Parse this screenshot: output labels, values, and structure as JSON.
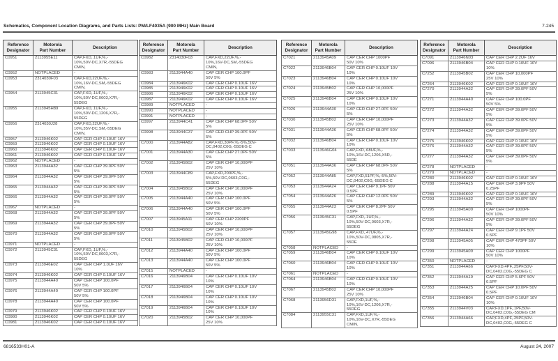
{
  "header": {
    "title": "Schematics, Component Location Diagrams, and Parts Lists: PM/LF4035A (900 MHz) Main Board",
    "page": "7-245"
  },
  "footer": {
    "doc_number": "6816533H01-A",
    "date": "August 24, 2007"
  },
  "columns": {
    "ref": "Reference\nDesignator",
    "part": "Motorola\nPart Number",
    "desc": "Description"
  },
  "tables": [
    {
      "rows": [
        {
          "ref": "C0951",
          "part": "2113955E11",
          "desc": "CAP,FXD,.1UF,%,-\n10%,50V-DC,X7R,-55DEG\nCMIN,"
        },
        {
          "ref": "C0952",
          "part": "NOTPLACED",
          "desc": "-"
        },
        {
          "ref": "C0953",
          "part": "2314030F03",
          "desc": "CAP,FXD,22UF,%,-\n10%,16V-DC,SM,-55DEG\nCMIN,"
        },
        {
          "ref": "C0954",
          "part": "2113945C31",
          "desc": "CAP,FXD,.1UF,%,-\n10%,50V-DC,0603,X7R,-\n55DEG"
        },
        {
          "ref": "C0955",
          "part": "2113945H89",
          "desc": "CAP,FXD,.1UF,%,-\n10%,50V-DC,1206,X7R,-\n55DEG"
        },
        {
          "ref": "C0956",
          "part": "2314030J28",
          "desc": "CAP,FXD,22UF,%,-\n10%,35V-DC,SM,-55DEG\nCMIN,"
        },
        {
          "ref": "C0957",
          "part": "2113946K02",
          "desc": "CAP CER CHP 0.10UF 16V"
        },
        {
          "ref": "C0959",
          "part": "2113946K02",
          "desc": "CAP CER CHP 0.10UF 16V"
        },
        {
          "ref": "C0960",
          "part": "2113946K02",
          "desc": "CAP CER CHP 0.10UF 16V"
        },
        {
          "ref": "C0961",
          "part": "2113946K02",
          "desc": "CAP CER CHP 0.10UF 16V"
        },
        {
          "ref": "C0962",
          "part": "NOTPLACED",
          "desc": "-"
        },
        {
          "ref": "C0963",
          "part": "2113944A32",
          "desc": "CAP CER CHP 39.0PF 50V\n5%"
        },
        {
          "ref": "C0964",
          "part": "2113944A32",
          "desc": "CAP CER CHP 39.0PF 50V\n5%"
        },
        {
          "ref": "C0965",
          "part": "2113944A32",
          "desc": "CAP CER CHP 39.0PF 50V\n5%"
        },
        {
          "ref": "C0966",
          "part": "2113944A32",
          "desc": "CAP CER CHP 39.0PF 50V\n5%"
        },
        {
          "ref": "C0967",
          "part": "NOTPLACED",
          "desc": "-"
        },
        {
          "ref": "C0968",
          "part": "2113944A32",
          "desc": "CAP CER CHP 39.0PF 50V\n5%"
        },
        {
          "ref": "C0969",
          "part": "2113944A32",
          "desc": "CAP CER CHP 39.0PF 50V\n5%"
        },
        {
          "ref": "C0970",
          "part": "2113944A32",
          "desc": "CAP CER CHP 39.0PF 50V\n5%"
        },
        {
          "ref": "C0971",
          "part": "NOTPLACED",
          "desc": "-"
        },
        {
          "ref": "C0972",
          "part": "2113945C31",
          "desc": "CAP,FXD,.1UF,%,-\n10%,50V-DC,0603,X7R,-\n55DEG"
        },
        {
          "ref": "C0973",
          "part": "2113946E02",
          "desc": "CAP CER CHP 1.0UF 16V\n10%"
        },
        {
          "ref": "C0974",
          "part": "2113946K02",
          "desc": "CAP CER CHP 0.10UF 16V"
        },
        {
          "ref": "C0975",
          "part": "2113944A40",
          "desc": "CAP CER CHP 100.0PF\n50V 5%"
        },
        {
          "ref": "C0976",
          "part": "2113944A40",
          "desc": "CAP CER CHP 100.0PF\n50V 5%"
        },
        {
          "ref": "C0978",
          "part": "2113944A40",
          "desc": "CAP CER CHP 100.0PF\n50V 5%"
        },
        {
          "ref": "C0979",
          "part": "2113946K02",
          "desc": "CAP CER CHP 0.10UF 16V"
        },
        {
          "ref": "C0980",
          "part": "2113946K02",
          "desc": "CAP CER CHP 0.10UF 16V"
        },
        {
          "ref": "C0981",
          "part": "2113946K02",
          "desc": "CAP CER CHP 0.10UF 16V"
        }
      ]
    },
    {
      "rows": [
        {
          "ref": "C0982",
          "part": "2314030F03",
          "desc": "CAP,FXD,22UF,%,-\n10%,16V-DC,SM,-55DEG\nCMIN,"
        },
        {
          "ref": "C0983",
          "part": "2113944A40",
          "desc": "CAP CER CHP 100.0PF\n50V 5%"
        },
        {
          "ref": "C0984",
          "part": "2113946K02",
          "desc": "CAP CER CHP 0.10UF 16V"
        },
        {
          "ref": "C0985",
          "part": "2113946K02",
          "desc": "CAP CER CHP 0.10UF 16V"
        },
        {
          "ref": "C0986",
          "part": "2113946K02",
          "desc": "CAP CER CHP 0.10UF 16V"
        },
        {
          "ref": "C0987",
          "part": "2113946K02",
          "desc": "CAP CER CHP 0.10UF 16V"
        },
        {
          "ref": "C0989",
          "part": "NOTPLACED",
          "desc": "-"
        },
        {
          "ref": "C0990",
          "part": "NOTPLACED",
          "desc": "-"
        },
        {
          "ref": "C0991",
          "part": "NOTPLACED",
          "desc": "-"
        },
        {
          "ref": "C0997",
          "part": "2113944C41",
          "desc": "CAP CER CHP 68.0PF 50V\n5%"
        },
        {
          "ref": "C0998",
          "part": "2113944C37",
          "desc": "CAP CER CHP 39.0PF 50V\n5%"
        },
        {
          "ref": "C7000",
          "part": "2113944A82",
          "desc": "CAP,FXD,30PF,%,-5%,50V-\nDC,0402,C0G,-55DEG C"
        },
        {
          "ref": "C7001",
          "part": "2113944A30",
          "desc": "CAP CER CHP 27.0PF 50V\n5%"
        },
        {
          "ref": "C7002",
          "part": "2113945B02",
          "desc": "CAP CER CHP 10,000PF\n25V 10%"
        },
        {
          "ref": "C7003",
          "part": "2113944C89",
          "desc": "CAP,FXD,200PF,%,-\n5%,50V-DC,0603,C0G,-\n55DEG"
        },
        {
          "ref": "C7004",
          "part": "2113945B02",
          "desc": "CAP CER CHP 10,000PF\n25V 10%"
        },
        {
          "ref": "C7005",
          "part": "2113944A40",
          "desc": "CAP CER CHP 100.0PF\n50V 5%"
        },
        {
          "ref": "C7006",
          "part": "2113944A40",
          "desc": "CAP CER CHP 100.0PF\n50V 5%"
        },
        {
          "ref": "C7007",
          "part": "2113945A11",
          "desc": "CAP CER CHP 2200PF\n50V 10%"
        },
        {
          "ref": "C7010",
          "part": "2113945B02",
          "desc": "CAP CER CHP 10,000PF\n25V 10%"
        },
        {
          "ref": "C7011",
          "part": "2113945B02",
          "desc": "CAP CER CHP 10,000PF\n25V 10%"
        },
        {
          "ref": "C7012",
          "part": "2113944A40",
          "desc": "CAP CER CHP 100.0PF\n50V 5%"
        },
        {
          "ref": "C7013",
          "part": "2113944A40",
          "desc": "CAP CER CHP 100.0PF\n50V 5%"
        },
        {
          "ref": "C7015",
          "part": "NOTPLACED",
          "desc": "-"
        },
        {
          "ref": "C7016",
          "part": "2113946B04",
          "desc": "CAP CER CHP 0.10UF 10V\n10%"
        },
        {
          "ref": "C7017",
          "part": "2113946B04",
          "desc": "CAP CER CHP 0.10UF 10V\n10%"
        },
        {
          "ref": "C7018",
          "part": "2113946B04",
          "desc": "CAP CER CHP 0.10UF 10V\n10%"
        },
        {
          "ref": "C7019",
          "part": "2113946B04",
          "desc": "CAP CER CHP 0.10UF 10V\n10%"
        },
        {
          "ref": "C7020",
          "part": "2113945B02",
          "desc": "CAP CER CHP 10,000PF\n25V 10%"
        }
      ]
    },
    {
      "rows": [
        {
          "ref": "C7021",
          "part": "2113945A09",
          "desc": "CAP CER CHP 1000PF\n50V 10%"
        },
        {
          "ref": "C7022",
          "part": "2113946B04",
          "desc": "CAP CER CHP 0.10UF 10V\n10%"
        },
        {
          "ref": "C7023",
          "part": "2113946B04",
          "desc": "CAP CER CHP 0.10UF 10V\n10%"
        },
        {
          "ref": "C7024",
          "part": "2113945B02",
          "desc": "CAP CER CHP 10,000PF\n25V 10%"
        },
        {
          "ref": "C7025",
          "part": "2113946B04",
          "desc": "CAP CER CHP 0.10UF 10V\n10%"
        },
        {
          "ref": "C7026",
          "part": "2113944A30",
          "desc": "CAP CER CHP 27.0PF 50V\n5%"
        },
        {
          "ref": "C7030",
          "part": "2113945B02",
          "desc": "CAP CER CHP 10,000PF\n25V 10%"
        },
        {
          "ref": "C7031",
          "part": "2113944A36",
          "desc": "CAP CER CHP 68.0PF 50V\n5%"
        },
        {
          "ref": "C7032",
          "part": "2113946B04",
          "desc": "CAP CER CHP 0.10UF 10V\n10%"
        },
        {
          "ref": "C7033",
          "part": "2113946G04",
          "desc": "CAP,FXD,.68UF,%,-\n10%,16V-DC,1206,X5R,-\n55DE"
        },
        {
          "ref": "C7051",
          "part": "2113944A36",
          "desc": "CAP CER CHP 68.0PF 50V\n5%"
        },
        {
          "ref": "C7052",
          "part": "2113944A85",
          "desc": "CAP,FXD,51PF,%,-5%,50V-\nDC,0402,C0G,-55DEG C"
        },
        {
          "ref": "C7053",
          "part": "2113944A24",
          "desc": "CAP CER CHP 9.1PF 50V\n0.5PF"
        },
        {
          "ref": "C7054",
          "part": "2113944A26",
          "desc": "CAP CER CHP 12.0PF 50V\n5%"
        },
        {
          "ref": "C7055",
          "part": "2113944A23",
          "desc": "CAP CER CHP 8.2PF 50V\n0.5PF"
        },
        {
          "ref": "C7056",
          "part": "2113945C31",
          "desc": "CAP,FXD,.1UF,%,-\n10%,50V-DC,0603,X7R,-\n55DEG"
        },
        {
          "ref": "C7057",
          "part": "2113945G98",
          "desc": "CAP,FXD,.47UF,%,-\n10%,50V-DC,0805,X7R,-\n55DE"
        },
        {
          "ref": "C7058",
          "part": "NOTPLACED",
          "desc": "-"
        },
        {
          "ref": "C7059",
          "part": "2113946B04",
          "desc": "CAP CER CHP 0.10UF 10V\n10%"
        },
        {
          "ref": "C7060",
          "part": "2113946B04",
          "desc": "CAP CER CHP 0.10UF 10V\n10%"
        },
        {
          "ref": "C7061",
          "part": "NOTPLACED",
          "desc": "-"
        },
        {
          "ref": "C7064",
          "part": "2113946B04",
          "desc": "CAP CER CHP 0.10UF 10V\n10%"
        },
        {
          "ref": "C7067",
          "part": "2113945B02",
          "desc": "CAP CER CHP 10,000PF\n25V 10%"
        },
        {
          "ref": "C7068",
          "part": "2113956D31",
          "desc": "CAP,FXD,1UF,%,-\n10%,16V-DC,1206,X7R,-\n55DEG"
        },
        {
          "ref": "C7084",
          "part": "2113955C31",
          "desc": "CAP,FXD,1UF,%,-\n10%,16V-DC,X7R,-55DEG\nCMIN,"
        }
      ]
    },
    {
      "rows": [
        {
          "ref": "C7091",
          "part": "2113946N03",
          "desc": "CAP CER CHP 2.2UF 16V"
        },
        {
          "ref": "C7096",
          "part": "2113946B04",
          "desc": "CAP CER CHP 0.10UF 10V\n10%"
        },
        {
          "ref": "C7252",
          "part": "2113945B02",
          "desc": "CAP CER CHP 10,000PF\n25V 10%"
        },
        {
          "ref": "C7264",
          "part": "2113946K02",
          "desc": "CAP CER CHP 0.10UF 16V"
        },
        {
          "ref": "C7270",
          "part": "2113944A32",
          "desc": "CAP CER CHP 39.0PF 50V\n5%"
        },
        {
          "ref": "C7271",
          "part": "2113944A40",
          "desc": "CAP CER CHP 100.0PF\n50V 5%"
        },
        {
          "ref": "C7272",
          "part": "2113944A32",
          "desc": "CAP CER CHP 39.0PF 50V\n5%"
        },
        {
          "ref": "C7273",
          "part": "2113944A32",
          "desc": "CAP CER CHP 39.0PF 50V\n5%"
        },
        {
          "ref": "C7274",
          "part": "2113944A32",
          "desc": "CAP CER CHP 39.0PF 50V\n5%"
        },
        {
          "ref": "C7275",
          "part": "2113946K02",
          "desc": "CAP CER CHP 0.10UF 16V"
        },
        {
          "ref": "C7276",
          "part": "2113944A32",
          "desc": "CAP CER CHP 39.0PF 50V\n5%"
        },
        {
          "ref": "C7277",
          "part": "2113944A32",
          "desc": "CAP CER CHP 39.0PF 50V\n5%"
        },
        {
          "ref": "C7278",
          "part": "NOTPLACED",
          "desc": "-"
        },
        {
          "ref": "C7279",
          "part": "NOTPLACED",
          "desc": "-"
        },
        {
          "ref": "C7280",
          "part": "2113946K02",
          "desc": "CAP CER CHP 0.10UF 16V"
        },
        {
          "ref": "C7288",
          "part": "2113944A15",
          "desc": "CAP CER CHP 3.9PF 50V\n0.25PF"
        },
        {
          "ref": "C7289",
          "part": "2113946K02",
          "desc": "CAP CER CHP 0.10UF 16V"
        },
        {
          "ref": "C7293",
          "part": "2113944A32",
          "desc": "CAP CER CHP 39.0PF 50V\n5%"
        },
        {
          "ref": "C7295",
          "part": "2113945A09",
          "desc": "CAP CER CHP 1000PF\n50V 10%"
        },
        {
          "ref": "C7296",
          "part": "2113944A32",
          "desc": "CAP CER CHP 39.0PF 50V\n5%"
        },
        {
          "ref": "C7297",
          "part": "2113944A24",
          "desc": "CAP CER CHP 9.1PF 50V\n0.5PF"
        },
        {
          "ref": "C7298",
          "part": "2113945A05",
          "desc": "CAP CER CHP 470PF 50V\n10%"
        },
        {
          "ref": "C7299",
          "part": "2113945A09",
          "desc": "CAP CER CHP 1000PF\n50V 10%"
        },
        {
          "ref": "C7350",
          "part": "NOTPLACED",
          "desc": "-"
        },
        {
          "ref": "C7351",
          "part": "2113944A66",
          "desc": "CAP,FXD,4PF,.25PF,50V-\nDC,0402,C0G,-55DEG C"
        },
        {
          "ref": "C7352",
          "part": "2113944A19",
          "desc": "CAP CER CHP 5.6PF 50V\n0.5PF"
        },
        {
          "ref": "C7353",
          "part": "2113944A25",
          "desc": "CAP CER CHP 10.0PF 50V\n0.5PF"
        },
        {
          "ref": "C7354",
          "part": "2113946B04",
          "desc": "CAP CER CHP 0.10UF 10V\n10%"
        },
        {
          "ref": "C7355",
          "part": "2113944V03",
          "desc": "CAP,FXD,1PF,.1PF,50V-\nDC,0402,C0G,-55DEG CM"
        },
        {
          "ref": "C7356",
          "part": "2113944A66",
          "desc": "CAP,FXD,4PF,.25PF,50V-\nDC,0402,C0G,-55DEG C"
        }
      ]
    }
  ]
}
